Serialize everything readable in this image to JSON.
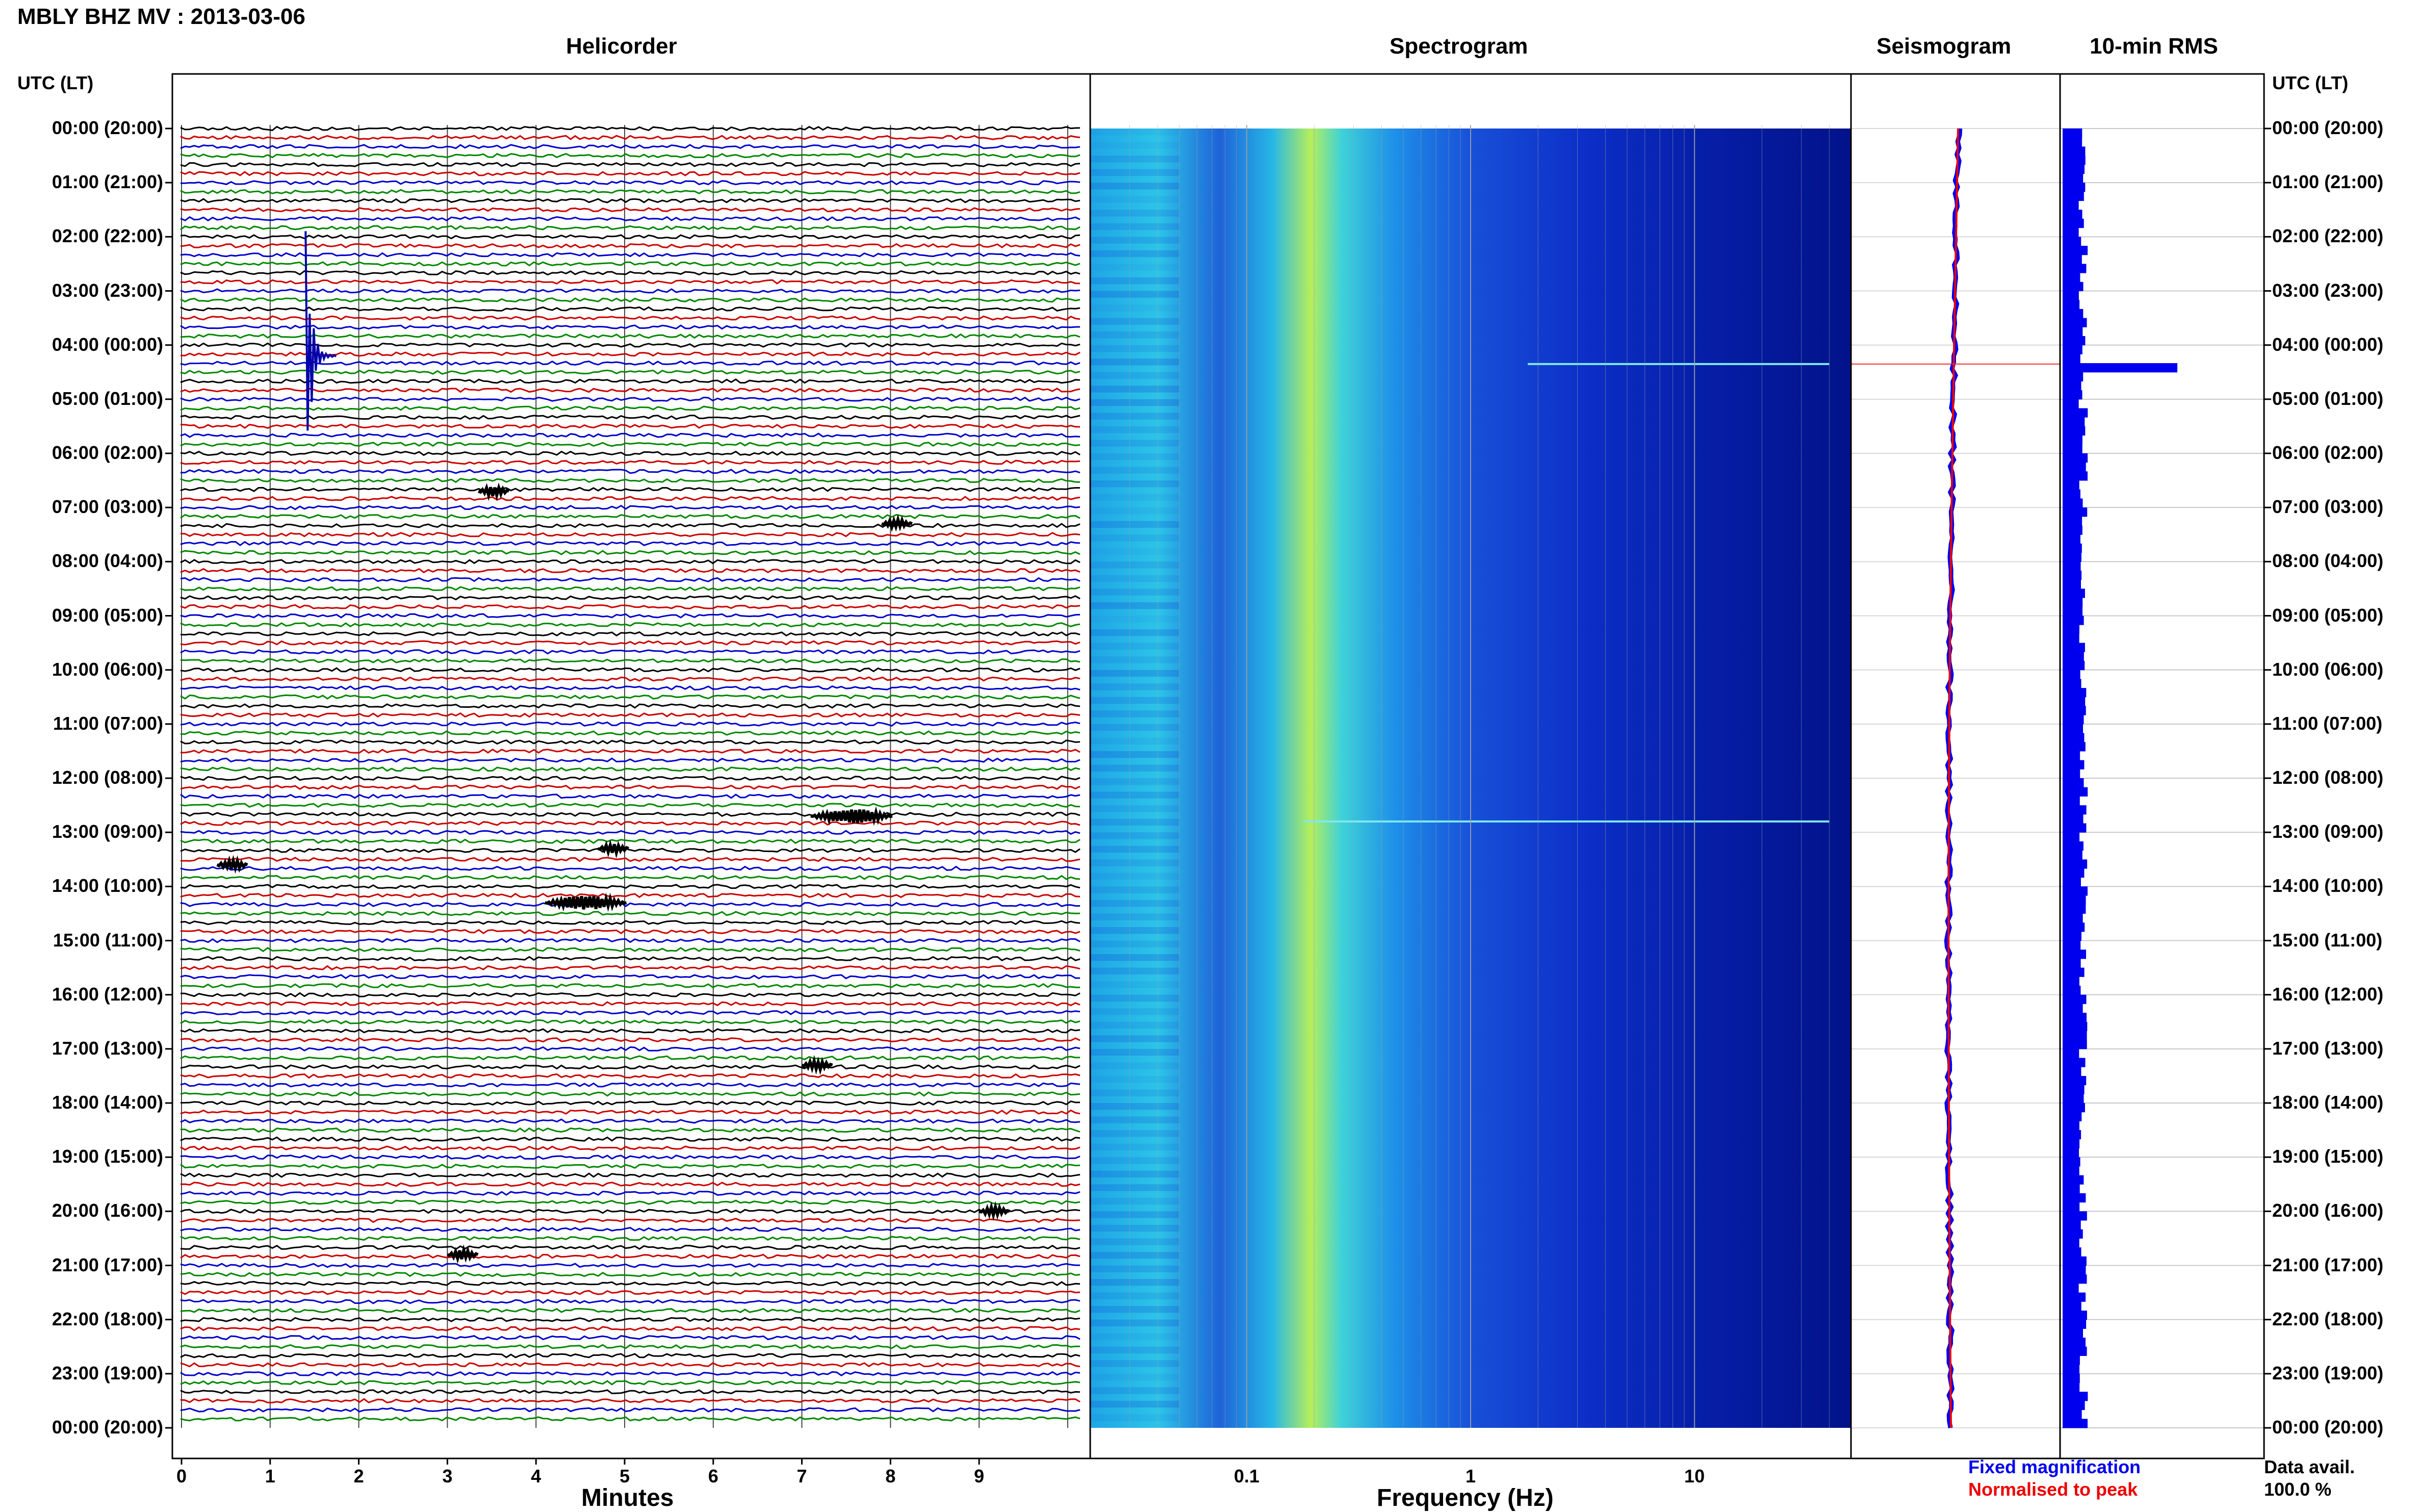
{
  "header": {
    "title": "MBLY BHZ MV : 2013-03-06"
  },
  "panels": {
    "helicorder": "Helicorder",
    "spectrogram": "Spectrogram",
    "seismogram": "Seismogram",
    "rms": "10-min RMS"
  },
  "time_axis": {
    "label_left": "UTC (LT)",
    "label_right": "UTC (LT)",
    "ticks": [
      "00:00 (20:00)",
      "01:00 (21:00)",
      "02:00 (22:00)",
      "03:00 (23:00)",
      "04:00 (00:00)",
      "05:00 (01:00)",
      "06:00 (02:00)",
      "07:00 (03:00)",
      "08:00 (04:00)",
      "09:00 (05:00)",
      "10:00 (06:00)",
      "11:00 (07:00)",
      "12:00 (08:00)",
      "13:00 (09:00)",
      "14:00 (10:00)",
      "15:00 (11:00)",
      "16:00 (12:00)",
      "17:00 (13:00)",
      "18:00 (14:00)",
      "19:00 (15:00)",
      "20:00 (16:00)",
      "21:00 (17:00)",
      "22:00 (18:00)",
      "23:00 (19:00)",
      "00:00 (20:00)"
    ]
  },
  "helicorder_axis": {
    "label": "Minutes",
    "ticks": [
      "0",
      "1",
      "2",
      "3",
      "4",
      "5",
      "6",
      "7",
      "8",
      "9"
    ]
  },
  "spectrogram_axis": {
    "label": "Frequency (Hz)",
    "ticks": [
      "0.1",
      "1",
      "10"
    ],
    "scale": "log"
  },
  "legend": {
    "fixed": "Fixed magnification",
    "fixed_color": "#0000ee",
    "normalised": "Normalised to peak",
    "normalised_color": "#ee0000"
  },
  "data_avail": {
    "label": "Data avail.",
    "value": "100.0 %"
  },
  "colors": {
    "trace_cycle": [
      "#000000",
      "#cc0000",
      "#0000cc",
      "#008800"
    ],
    "rms_bar": "#0000ee",
    "spectrogram_low": "#00007a",
    "spectrogram_mid": "#22c6e6",
    "spectrogram_high": "#d7f24a"
  },
  "chart_data": [
    {
      "type": "line",
      "name": "helicorder",
      "x_unit": "minutes",
      "xlim": [
        0,
        10
      ],
      "rows": 144,
      "events": [
        {
          "hour": 4.2,
          "minute": 1.4,
          "amplitude": "large"
        },
        {
          "hour": 6.7,
          "minute": 3.35,
          "amplitude": "small"
        },
        {
          "hour": 7.3,
          "minute": 7.9,
          "amplitude": "small"
        },
        {
          "hour": 12.7,
          "minute": 7.1,
          "amplitude": "medium"
        },
        {
          "hour": 13.3,
          "minute": 4.7,
          "amplitude": "small"
        },
        {
          "hour": 13.6,
          "minute": 0.4,
          "amplitude": "small"
        },
        {
          "hour": 14.3,
          "minute": 4.1,
          "amplitude": "medium"
        },
        {
          "hour": 17.3,
          "minute": 7.0,
          "amplitude": "small"
        },
        {
          "hour": 20.0,
          "minute": 9.0,
          "amplitude": "small"
        },
        {
          "hour": 20.8,
          "minute": 3.0,
          "amplitude": "small"
        }
      ]
    },
    {
      "type": "heatmap",
      "name": "spectrogram",
      "xlim": [
        0.02,
        50
      ],
      "x_scale": "log",
      "peak_frequency_hz": 0.25,
      "notable_lines": [
        {
          "hour": 4.35,
          "from_hz": 1.8,
          "to_hz": 40
        },
        {
          "hour": 12.8,
          "from_hz": 0.18,
          "to_hz": 40
        }
      ]
    },
    {
      "type": "line",
      "name": "seismogram",
      "series": [
        {
          "name": "Fixed magnification",
          "color": "#0000ee"
        },
        {
          "name": "Normalised to peak",
          "color": "#ee0000"
        }
      ],
      "spike_hour": 4.35
    },
    {
      "type": "bar",
      "name": "10-min RMS",
      "orientation": "horizontal",
      "bins_per_hour": 6,
      "typical_relative": 0.18,
      "peak": {
        "hour": 4.35,
        "relative": 1.0
      }
    }
  ]
}
